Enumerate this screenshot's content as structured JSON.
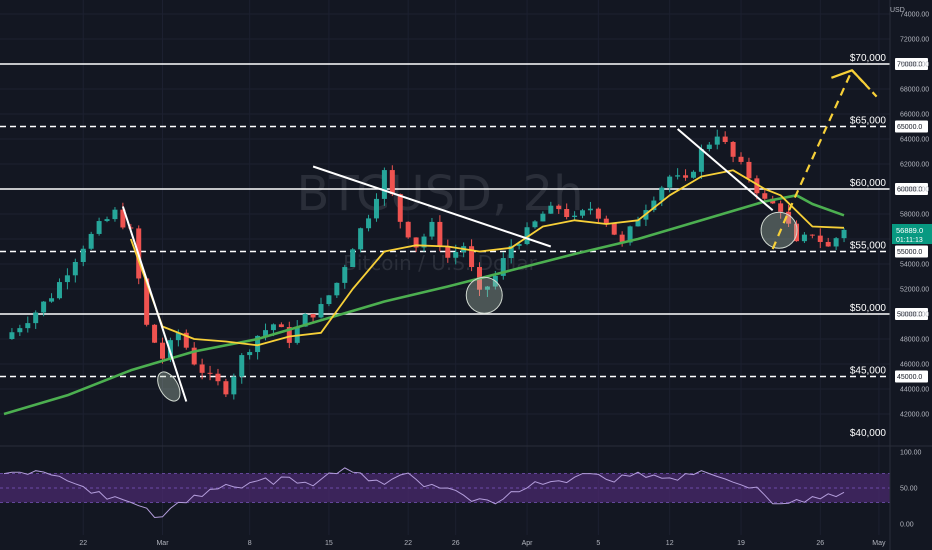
{
  "chart_data": {
    "type": "candlestick",
    "watermark": {
      "symbol": "BTCUSD, 2h",
      "description": "Bitcoin / U.S. Dollar"
    },
    "currency": "USD",
    "price_axis_ticks": [
      "42000.00",
      "44000.00",
      "46000.00",
      "48000.00",
      "50000.00",
      "52000.00",
      "54000.00",
      "56000.00",
      "58000.00",
      "60000.00",
      "62000.00",
      "64000.00",
      "66000.00",
      "68000.00",
      "70000.00",
      "72000.00",
      "74000.00"
    ],
    "date_axis_ticks": [
      "22",
      "Mar",
      "8",
      "15",
      "22",
      "26",
      "Apr",
      "5",
      "12",
      "19",
      "26",
      "May"
    ],
    "last_price": {
      "value": "56889.0",
      "countdown": "01:11:13"
    },
    "levels": [
      {
        "value": 70000,
        "label": "$70,000",
        "tag": "70000.0",
        "style": "solid"
      },
      {
        "value": 65000,
        "label": "$65,000",
        "tag": "65000.0",
        "style": "dashed"
      },
      {
        "value": 60000,
        "label": "$60,000",
        "tag": "60000.0",
        "style": "solid"
      },
      {
        "value": 55000,
        "label": "$55,000",
        "tag": "55000.0",
        "style": "dashed"
      },
      {
        "value": 50000,
        "label": "$50,000",
        "tag": "50000.0",
        "style": "solid"
      },
      {
        "value": 45000,
        "label": "$45,000",
        "tag": "45000.0",
        "style": "dashed"
      },
      {
        "value": 40000,
        "label": "$40,000",
        "tag": "",
        "style": "none"
      }
    ],
    "price_path": [
      [
        0,
        48000
      ],
      [
        2,
        50200
      ],
      [
        3,
        51500
      ],
      [
        4,
        53500
      ],
      [
        5,
        55500
      ],
      [
        6,
        57000
      ],
      [
        7,
        58100
      ],
      [
        8,
        56500
      ],
      [
        9,
        49000
      ],
      [
        10,
        46500
      ],
      [
        11,
        48500
      ],
      [
        12,
        46200
      ],
      [
        13,
        44800
      ],
      [
        14,
        44000
      ],
      [
        15,
        46500
      ],
      [
        16,
        48300
      ],
      [
        17,
        49200
      ],
      [
        18,
        48000
      ],
      [
        19,
        49700
      ],
      [
        20,
        50500
      ],
      [
        21,
        52500
      ],
      [
        22,
        55500
      ],
      [
        23,
        58000
      ],
      [
        24,
        61300
      ],
      [
        25,
        57500
      ],
      [
        26,
        55500
      ],
      [
        27,
        57000
      ],
      [
        28,
        54500
      ],
      [
        29,
        55500
      ],
      [
        30,
        51500
      ],
      [
        31,
        53000
      ],
      [
        32,
        55500
      ],
      [
        33,
        56500
      ],
      [
        34,
        58000
      ],
      [
        35,
        58500
      ],
      [
        36,
        57500
      ],
      [
        37,
        58500
      ],
      [
        38,
        57500
      ],
      [
        39,
        55500
      ],
      [
        40,
        57800
      ],
      [
        41,
        59500
      ],
      [
        42,
        61000
      ],
      [
        43,
        60500
      ],
      [
        44,
        63000
      ],
      [
        45,
        64500
      ],
      [
        46,
        62500
      ],
      [
        47,
        61000
      ],
      [
        48,
        59000
      ],
      [
        49,
        58500
      ],
      [
        50,
        55500
      ],
      [
        51,
        56500
      ],
      [
        52,
        55300
      ],
      [
        53,
        56900
      ]
    ],
    "ma_fast": [
      [
        8,
        56000
      ],
      [
        10,
        49000
      ],
      [
        12,
        48000
      ],
      [
        14,
        47800
      ],
      [
        16,
        47500
      ],
      [
        18,
        48200
      ],
      [
        20,
        48500
      ],
      [
        22,
        52000
      ],
      [
        24,
        55000
      ],
      [
        26,
        55500
      ],
      [
        28,
        55400
      ],
      [
        30,
        55000
      ],
      [
        32,
        55300
      ],
      [
        34,
        57000
      ],
      [
        36,
        57500
      ],
      [
        38,
        57200
      ],
      [
        40,
        57500
      ],
      [
        42,
        59500
      ],
      [
        44,
        61000
      ],
      [
        46,
        61500
      ],
      [
        48,
        60000
      ],
      [
        49,
        59500
      ],
      [
        51,
        57000
      ],
      [
        53,
        56900
      ]
    ],
    "ma_slow": [
      [
        0,
        42000
      ],
      [
        4,
        43500
      ],
      [
        8,
        45500
      ],
      [
        12,
        47000
      ],
      [
        16,
        48000
      ],
      [
        20,
        49500
      ],
      [
        24,
        51000
      ],
      [
        28,
        52200
      ],
      [
        32,
        53500
      ],
      [
        36,
        54800
      ],
      [
        40,
        56000
      ],
      [
        44,
        57500
      ],
      [
        48,
        59000
      ],
      [
        50,
        59500
      ],
      [
        51,
        58800
      ],
      [
        53,
        57900
      ]
    ],
    "trendlines": [
      {
        "from": [
          7.5,
          58600
        ],
        "to": [
          11.5,
          43000
        ]
      },
      {
        "from": [
          19.5,
          61800
        ],
        "to": [
          34.5,
          55400
        ]
      },
      {
        "from": [
          42.5,
          64800
        ],
        "to": [
          48.5,
          58300
        ]
      }
    ],
    "projection": [
      [
        48.5,
        55200
      ],
      [
        49.5,
        58200
      ],
      [
        53.5,
        69500
      ]
    ],
    "projection_arrow": [
      [
        53.5,
        69500
      ],
      [
        55.2,
        67200
      ]
    ],
    "rsi": {
      "ticks": [
        "100.00",
        "50.00",
        "0.00"
      ],
      "band": [
        30,
        70
      ],
      "values": [
        70,
        72,
        74,
        68,
        60,
        52,
        45,
        38,
        30,
        22,
        10,
        30,
        40,
        48,
        55,
        50,
        60,
        55,
        65,
        58,
        62,
        70,
        72,
        60,
        55,
        68,
        62,
        55,
        50,
        40,
        35,
        28,
        45,
        50,
        55,
        60,
        65,
        70,
        62,
        68,
        72,
        68,
        64,
        70,
        74,
        66,
        58,
        50,
        40,
        28,
        34,
        38,
        42,
        44
      ]
    }
  }
}
